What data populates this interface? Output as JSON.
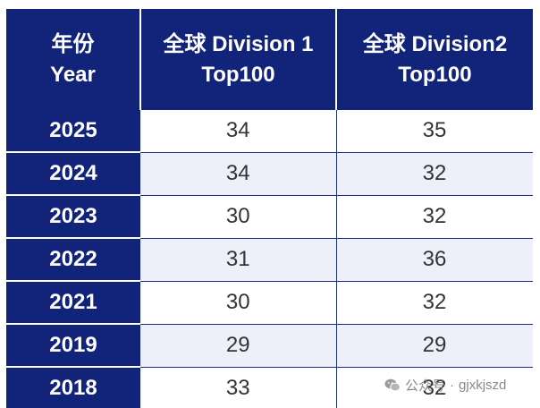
{
  "table": {
    "headers": [
      [
        "年份",
        "Year"
      ],
      [
        "全球 Division 1",
        "Top100"
      ],
      [
        "全球 Division2",
        "Top100"
      ]
    ],
    "rows": [
      {
        "year": "2025",
        "div1": "34",
        "div2": "35"
      },
      {
        "year": "2024",
        "div1": "34",
        "div2": "32"
      },
      {
        "year": "2023",
        "div1": "30",
        "div2": "32"
      },
      {
        "year": "2022",
        "div1": "31",
        "div2": "36"
      },
      {
        "year": "2021",
        "div1": "30",
        "div2": "32"
      },
      {
        "year": "2019",
        "div1": "29",
        "div2": "29"
      },
      {
        "year": "2018",
        "div1": "33",
        "div2": "32"
      }
    ]
  },
  "watermark": {
    "prefix": "公众号",
    "separator": "·",
    "account": "gjxkjszd"
  },
  "colors": {
    "header_bg": "#11247a",
    "stripe_bg": "#eef0f9"
  }
}
